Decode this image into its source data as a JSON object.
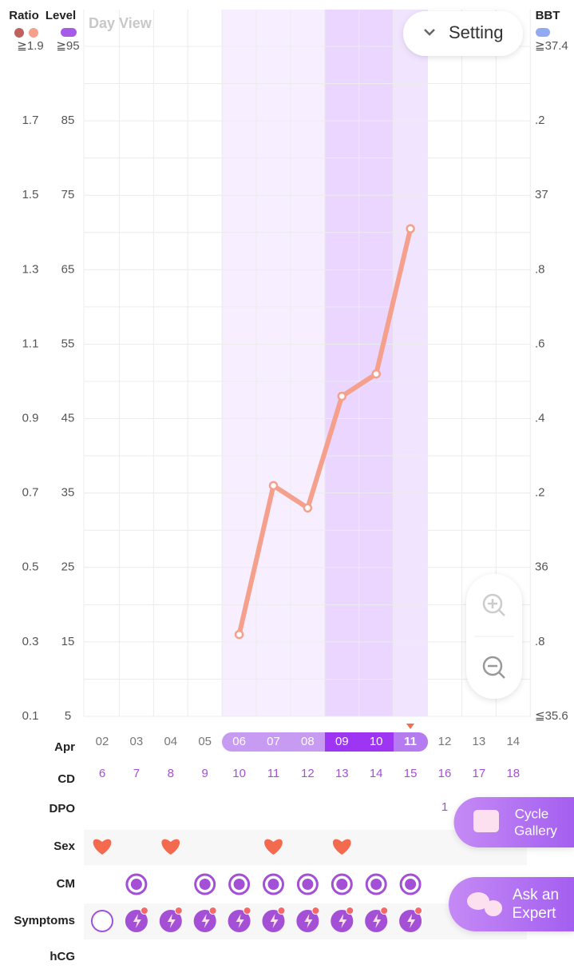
{
  "app": {
    "view_label": "Day View",
    "setting": "Setting"
  },
  "chart_data": {
    "type": "line",
    "level_title": "Level",
    "bbt_title": "BBT",
    "categories": [
      "02",
      "03",
      "04",
      "05",
      "06",
      "07",
      "08",
      "09",
      "10",
      "11",
      "12",
      "13",
      "14"
    ],
    "series": [
      {
        "name": "Ratio",
        "color": "#f4a08c",
        "values": [
          null,
          null,
          null,
          null,
          0.32,
          0.72,
          0.66,
          0.96,
          1.02,
          1.41,
          null,
          null,
          null
        ]
      }
    ],
    "ylim": [
      0.1,
      1.9
    ],
    "yticks": [
      {
        "value": 1.9,
        "label": "≧1.9"
      },
      1.7,
      1.5,
      1.3,
      1.1,
      0.9,
      0.7,
      0.5,
      0.3,
      0.1
    ],
    "y2lim": [
      5,
      95
    ],
    "y2ticks": [
      {
        "value": 95,
        "label": "≧95"
      },
      85,
      75,
      65,
      55,
      45,
      35,
      25,
      15,
      5
    ],
    "bbt_lim": [
      35.6,
      37.4
    ],
    "bbt_ticks": [
      {
        "value": 37.4,
        "label": "≧37.4"
      },
      {
        "value": 37.2,
        "label": ".2"
      },
      37,
      {
        "value": 36.8,
        "label": ".8"
      },
      {
        "value": 36.6,
        "label": ".6"
      },
      {
        "value": 36.4,
        "label": ".4"
      },
      {
        "value": 36.2,
        "label": ".2"
      },
      36,
      {
        "value": 35.8,
        "label": ".8"
      },
      {
        "value": 35.6,
        "label": "≦35.6"
      }
    ],
    "grid": true
  },
  "rows": {
    "month": "Apr",
    "cd_label": "CD",
    "cd": [
      6,
      7,
      8,
      9,
      10,
      11,
      12,
      13,
      14,
      15,
      16,
      17,
      18
    ],
    "dpo_label": "DPO",
    "dpo": [
      null,
      null,
      null,
      null,
      null,
      null,
      null,
      null,
      null,
      null,
      1,
      null,
      null
    ],
    "sex_label": "Sex",
    "cm_label": "CM",
    "symptoms_label": "Symptoms",
    "hcg_label": "hCG"
  },
  "buttons": {
    "gallery": [
      "Cycle",
      "Gallery"
    ],
    "expert": [
      "Ask an",
      "Expert"
    ]
  }
}
